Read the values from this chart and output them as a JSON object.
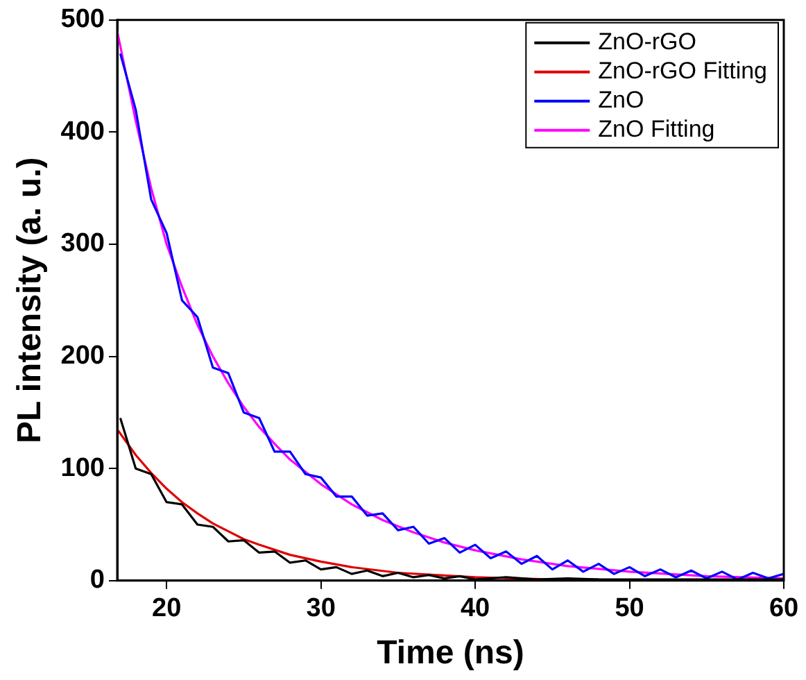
{
  "chart_data": {
    "type": "line",
    "xlabel": "Time (ns)",
    "ylabel": "PL intensity (a. u.)",
    "xlim": [
      16.8,
      60
    ],
    "ylim": [
      0,
      500
    ],
    "xticks": [
      20,
      30,
      40,
      50,
      60
    ],
    "yticks": [
      0,
      100,
      200,
      300,
      400,
      500
    ],
    "grid": false,
    "legend": "top right",
    "marker": "none",
    "line_style": "solid",
    "series": [
      {
        "name": "ZnO-rGO",
        "color": "#000000",
        "x": [
          17,
          18,
          19,
          20,
          21,
          22,
          23,
          24,
          25,
          26,
          27,
          28,
          29,
          30,
          31,
          32,
          33,
          34,
          35,
          36,
          37,
          38,
          39,
          40,
          42,
          44,
          46,
          48,
          50,
          55,
          60
        ],
        "values": [
          145,
          100,
          95,
          70,
          68,
          50,
          48,
          35,
          36,
          25,
          26,
          16,
          18,
          10,
          12,
          6,
          9,
          4,
          7,
          3,
          5,
          2,
          4,
          1,
          3,
          1,
          2,
          1,
          1,
          1,
          1
        ]
      },
      {
        "name": "ZnO-rGO Fitting",
        "color": "#e00000",
        "x": [
          16.8,
          18,
          19,
          20,
          21,
          22,
          23,
          24,
          25,
          26,
          28,
          30,
          32,
          35,
          40,
          45,
          48
        ],
        "values": [
          135,
          112,
          96,
          82,
          70,
          60,
          51,
          44,
          37,
          32,
          23,
          17,
          12,
          7,
          3,
          1,
          1
        ]
      },
      {
        "name": "ZnO",
        "color": "#0000ff",
        "x": [
          17,
          18,
          19,
          20,
          21,
          22,
          23,
          24,
          25,
          26,
          27,
          28,
          29,
          30,
          31,
          32,
          33,
          34,
          35,
          36,
          37,
          38,
          39,
          40,
          41,
          42,
          43,
          44,
          45,
          46,
          47,
          48,
          49,
          50,
          51,
          52,
          53,
          54,
          55,
          56,
          57,
          58,
          59,
          60
        ],
        "values": [
          470,
          420,
          340,
          310,
          250,
          235,
          190,
          185,
          150,
          145,
          115,
          115,
          95,
          92,
          75,
          75,
          58,
          60,
          45,
          48,
          33,
          38,
          25,
          32,
          20,
          26,
          15,
          22,
          10,
          18,
          8,
          15,
          6,
          12,
          4,
          10,
          3,
          9,
          2,
          8,
          1,
          7,
          2,
          6
        ]
      },
      {
        "name": "ZnO Fitting",
        "color": "#ff00ff",
        "x": [
          16.8,
          18,
          19,
          20,
          21,
          22,
          23,
          24,
          25,
          26,
          27,
          28,
          30,
          32,
          34,
          36,
          38,
          40,
          43,
          46,
          50,
          55,
          60
        ],
        "values": [
          490,
          410,
          350,
          300,
          262,
          228,
          200,
          176,
          155,
          137,
          122,
          108,
          86,
          68,
          54,
          43,
          34,
          27,
          19,
          13,
          8,
          4,
          2
        ]
      }
    ]
  }
}
